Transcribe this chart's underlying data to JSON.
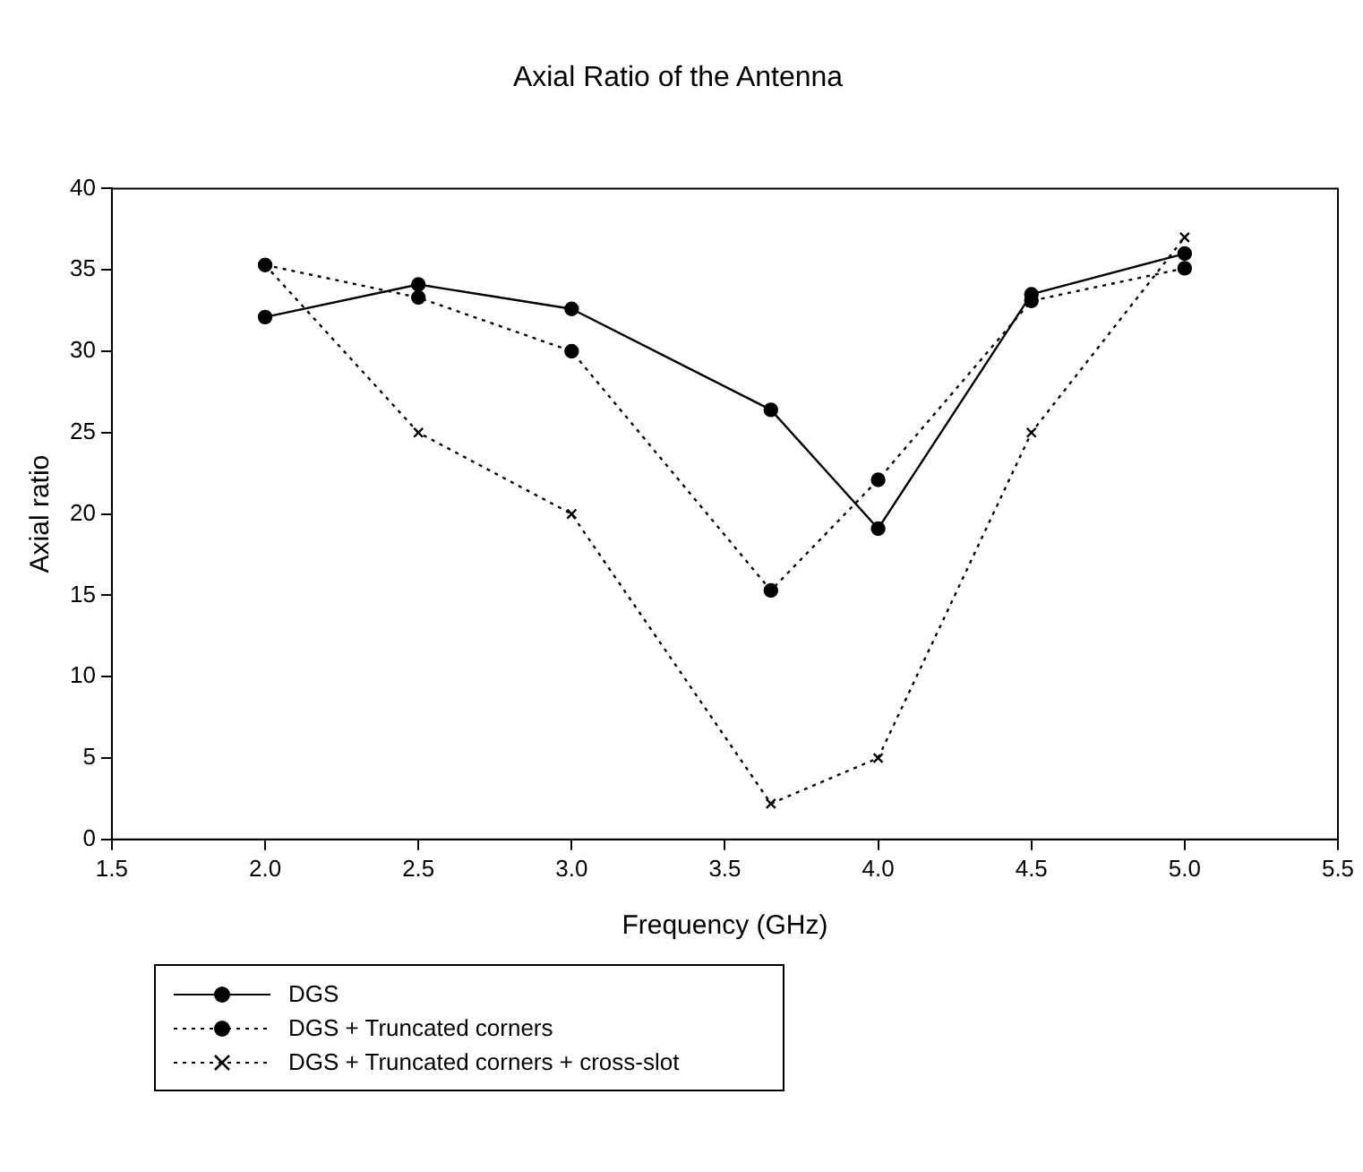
{
  "chart_data": {
    "type": "line",
    "title": "Axial Ratio of the Antenna",
    "xlabel": "Frequency (GHz)",
    "ylabel": "Axial ratio",
    "xlim": [
      1.5,
      5.5
    ],
    "xticks": [
      {
        "value": 1.5,
        "label": "1.5"
      },
      {
        "value": 2,
        "label": "2.0"
      },
      {
        "value": 2.5,
        "label": "2.5"
      },
      {
        "value": 3,
        "label": "3.0"
      },
      {
        "value": 3.5,
        "label": "3.5"
      },
      {
        "value": 4,
        "label": "4.0"
      },
      {
        "value": 4.5,
        "label": "4.5"
      },
      {
        "value": 5,
        "label": "5.0"
      },
      {
        "value": 5.5,
        "label": "5.5"
      }
    ],
    "ylim": [
      0,
      40
    ],
    "yticks": [
      0,
      5,
      10,
      15,
      20,
      25,
      30,
      35,
      40
    ],
    "grid": false,
    "legend": "bottom",
    "x": [
      2.0,
      2.5,
      3.0,
      3.65,
      4.0,
      4.5,
      5.0
    ],
    "series": [
      {
        "name": "DGS",
        "color": "#000000",
        "marker": "circle",
        "line_style": "solid",
        "values": [
          32.1,
          34.1,
          32.6,
          26.4,
          19.1,
          33.5,
          36.0
        ]
      },
      {
        "name": "DGS + Truncated corners",
        "color": "#000000",
        "marker": "circle",
        "line_style": "dotted",
        "values": [
          35.3,
          33.3,
          30.0,
          15.3,
          22.1,
          33.1,
          35.1
        ]
      },
      {
        "name": "DGS + Truncated corners + cross-slot",
        "color": "#000000",
        "marker": "cross",
        "line_style": "dotted",
        "values": [
          35.3,
          25.0,
          20.0,
          2.2,
          5.0,
          25.0,
          37.0
        ]
      }
    ]
  }
}
